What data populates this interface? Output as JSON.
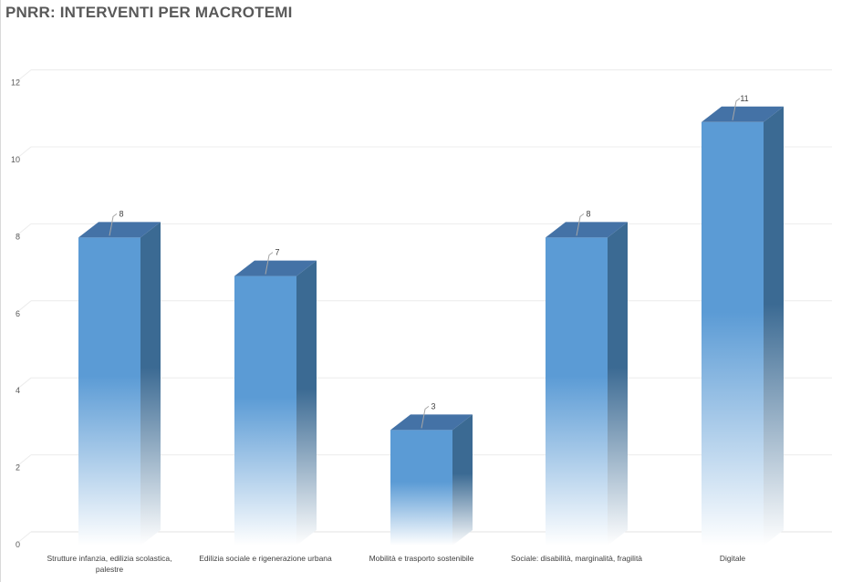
{
  "chart_data": {
    "type": "bar",
    "title": "PNRR: INTERVENTI PER MACROTEMI",
    "categories": [
      [
        "Strutture infanzia, edilizia scolastica,",
        "palestre"
      ],
      [
        "Edilizia sociale e rigenerazione urbana"
      ],
      [
        "Mobilità e trasporto sostenibile"
      ],
      [
        "Sociale: disabilità, marginalità, fragilità"
      ],
      [
        "Digitale"
      ]
    ],
    "values": [
      8,
      7,
      3,
      8,
      11
    ],
    "ylim": [
      0,
      12
    ],
    "yticks": [
      0,
      2,
      4,
      6,
      8,
      10,
      12
    ],
    "grid": true,
    "style": "3d-column",
    "colors": {
      "front": "#5b9bd5",
      "side": "#3b6a93",
      "top": "#4472a6",
      "grid": "#ececec",
      "leader": "#a6a6a6"
    }
  }
}
